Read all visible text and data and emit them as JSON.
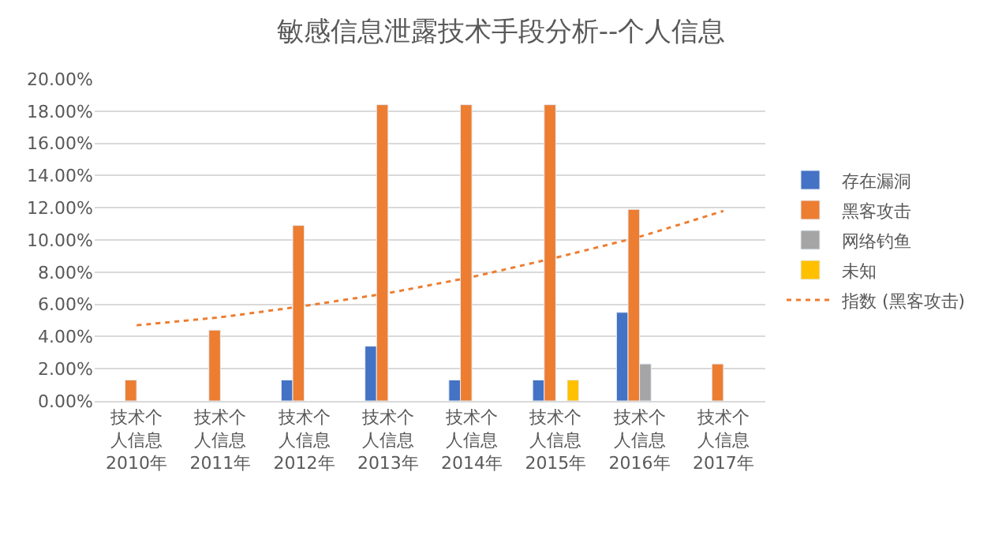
{
  "chart_data": {
    "type": "bar",
    "title": "敏感信息泄露技术手段分析--个人信息",
    "categories": [
      "技术个人信息\n2010年",
      "技术个人信息\n2011年",
      "技术个人信息\n2012年",
      "技术个人信息\n2013年",
      "技术个人信息\n2014年",
      "技术个人信息\n2015年",
      "技术个人信息\n2016年",
      "技术个人信息\n2017年"
    ],
    "series": [
      {
        "name": "存在漏洞",
        "color": "#4472c4",
        "values": [
          null,
          null,
          1.3,
          3.4,
          1.3,
          1.3,
          5.5,
          null
        ]
      },
      {
        "name": "黑客攻击",
        "color": "#ed7d31",
        "values": [
          1.3,
          4.4,
          10.9,
          18.4,
          18.4,
          18.4,
          11.9,
          2.3
        ]
      },
      {
        "name": "网络钓鱼",
        "color": "#a5a5a5",
        "values": [
          null,
          null,
          null,
          null,
          null,
          null,
          2.3,
          null
        ]
      },
      {
        "name": "未知",
        "color": "#ffc000",
        "values": [
          null,
          null,
          null,
          null,
          null,
          1.3,
          null,
          null
        ]
      },
      {
        "name": "指数 (黑客攻击)",
        "color": "#ed7d31",
        "type": "line",
        "line_style": "dotted",
        "values": [
          4.7,
          5.2,
          5.9,
          6.7,
          7.7,
          8.9,
          10.2,
          11.8
        ]
      }
    ],
    "ylim": [
      0,
      20
    ],
    "yticks": [
      {
        "value": 0,
        "label": "0.00%"
      },
      {
        "value": 2,
        "label": "2.00%"
      },
      {
        "value": 4,
        "label": "4.00%"
      },
      {
        "value": 6,
        "label": "6.00%"
      },
      {
        "value": 8,
        "label": "8.00%"
      },
      {
        "value": 10,
        "label": "10.00%"
      },
      {
        "value": 12,
        "label": "12.00%"
      },
      {
        "value": 14,
        "label": "14.00%"
      },
      {
        "value": 16,
        "label": "16.00%"
      },
      {
        "value": 18,
        "label": "18.00%"
      },
      {
        "value": 20,
        "label": "20.00%"
      }
    ],
    "grid": "y",
    "legend": "right",
    "marker": "none"
  }
}
